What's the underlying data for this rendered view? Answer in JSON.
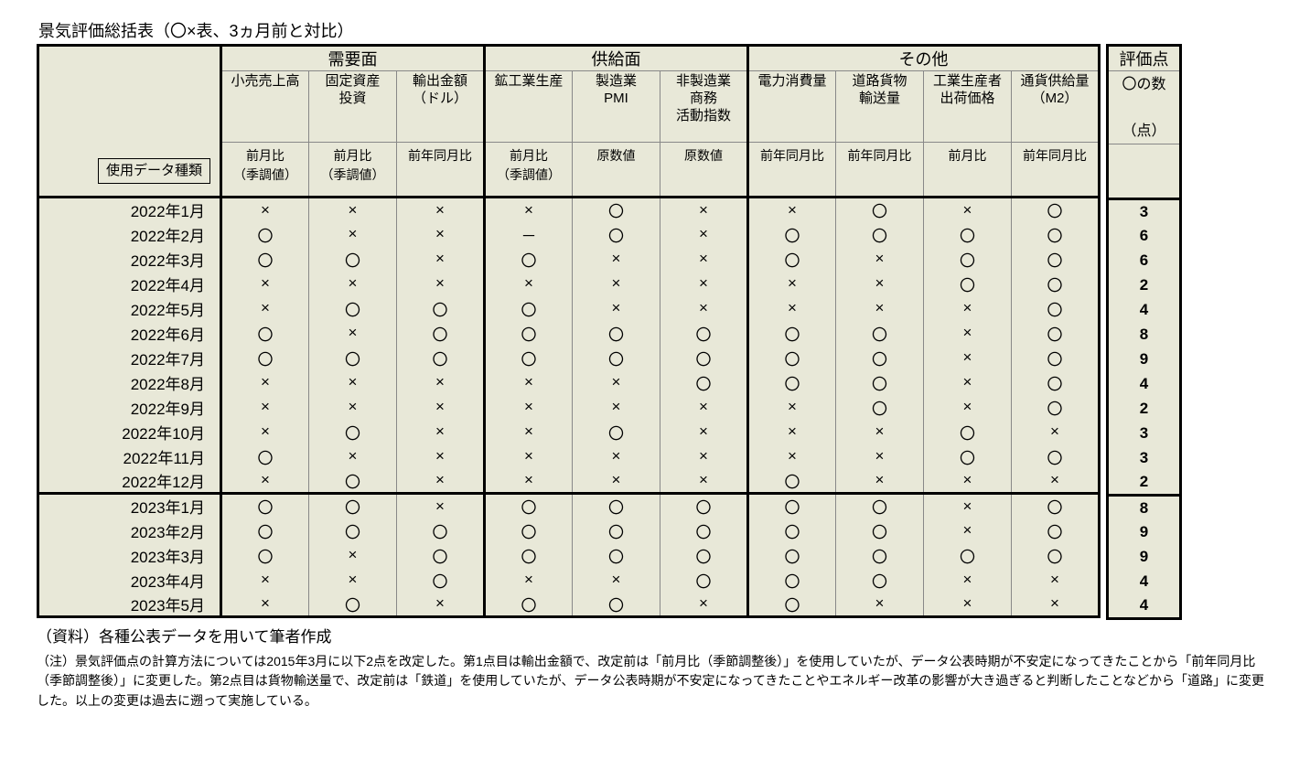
{
  "title": "景気評価総括表（〇×表、3ヵ月前と対比）",
  "main_table": {
    "row_label_header": "使用データ種類",
    "groups": [
      {
        "label": "需要面",
        "span": 3
      },
      {
        "label": "供給面",
        "span": 3
      },
      {
        "label": "その他",
        "span": 4
      }
    ],
    "columns": [
      {
        "label": "小売売上高",
        "datatype": "前月比\n（季調値）",
        "group_end": false
      },
      {
        "label": "固定資産\n投資",
        "datatype": "前月比\n（季調値）",
        "group_end": false
      },
      {
        "label": "輸出金額\n（ドル）",
        "datatype": "前年同月比",
        "group_end": true
      },
      {
        "label": "鉱工業生産",
        "datatype": "前月比\n（季調値）",
        "group_end": false
      },
      {
        "label": "製造業\nPMI",
        "datatype": "原数値",
        "group_end": false
      },
      {
        "label": "非製造業\n商務\n活動指数",
        "datatype": "原数値",
        "group_end": true
      },
      {
        "label": "電力消費量",
        "datatype": "前年同月比",
        "group_end": false
      },
      {
        "label": "道路貨物\n輸送量",
        "datatype": "前年同月比",
        "group_end": false
      },
      {
        "label": "工業生産者\n出荷価格",
        "datatype": "前月比",
        "group_end": false
      },
      {
        "label": "通貨供給量\n（M2）",
        "datatype": "前年同月比",
        "group_end": false
      }
    ],
    "rows": [
      {
        "label": "2022年1月",
        "cells": [
          "×",
          "×",
          "×",
          "×",
          "〇",
          "×",
          "×",
          "〇",
          "×",
          "〇"
        ],
        "score": "3",
        "year_sep": false
      },
      {
        "label": "2022年2月",
        "cells": [
          "〇",
          "×",
          "×",
          "－",
          "〇",
          "×",
          "〇",
          "〇",
          "〇",
          "〇"
        ],
        "score": "6",
        "year_sep": false
      },
      {
        "label": "2022年3月",
        "cells": [
          "〇",
          "〇",
          "×",
          "〇",
          "×",
          "×",
          "〇",
          "×",
          "〇",
          "〇"
        ],
        "score": "6",
        "year_sep": false
      },
      {
        "label": "2022年4月",
        "cells": [
          "×",
          "×",
          "×",
          "×",
          "×",
          "×",
          "×",
          "×",
          "〇",
          "〇"
        ],
        "score": "2",
        "year_sep": false
      },
      {
        "label": "2022年5月",
        "cells": [
          "×",
          "〇",
          "〇",
          "〇",
          "×",
          "×",
          "×",
          "×",
          "×",
          "〇"
        ],
        "score": "4",
        "year_sep": false
      },
      {
        "label": "2022年6月",
        "cells": [
          "〇",
          "×",
          "〇",
          "〇",
          "〇",
          "〇",
          "〇",
          "〇",
          "×",
          "〇"
        ],
        "score": "8",
        "year_sep": false
      },
      {
        "label": "2022年7月",
        "cells": [
          "〇",
          "〇",
          "〇",
          "〇",
          "〇",
          "〇",
          "〇",
          "〇",
          "×",
          "〇"
        ],
        "score": "9",
        "year_sep": false
      },
      {
        "label": "2022年8月",
        "cells": [
          "×",
          "×",
          "×",
          "×",
          "×",
          "〇",
          "〇",
          "〇",
          "×",
          "〇"
        ],
        "score": "4",
        "year_sep": false
      },
      {
        "label": "2022年9月",
        "cells": [
          "×",
          "×",
          "×",
          "×",
          "×",
          "×",
          "×",
          "〇",
          "×",
          "〇"
        ],
        "score": "2",
        "year_sep": false
      },
      {
        "label": "2022年10月",
        "cells": [
          "×",
          "〇",
          "×",
          "×",
          "〇",
          "×",
          "×",
          "×",
          "〇",
          "×"
        ],
        "score": "3",
        "year_sep": false
      },
      {
        "label": "2022年11月",
        "cells": [
          "〇",
          "×",
          "×",
          "×",
          "×",
          "×",
          "×",
          "×",
          "〇",
          "〇"
        ],
        "score": "3",
        "year_sep": false
      },
      {
        "label": "2022年12月",
        "cells": [
          "×",
          "〇",
          "×",
          "×",
          "×",
          "×",
          "〇",
          "×",
          "×",
          "×"
        ],
        "score": "2",
        "year_sep": true
      },
      {
        "label": "2023年1月",
        "cells": [
          "〇",
          "〇",
          "×",
          "〇",
          "〇",
          "〇",
          "〇",
          "〇",
          "×",
          "〇"
        ],
        "score": "8",
        "year_sep": false
      },
      {
        "label": "2023年2月",
        "cells": [
          "〇",
          "〇",
          "〇",
          "〇",
          "〇",
          "〇",
          "〇",
          "〇",
          "×",
          "〇"
        ],
        "score": "9",
        "year_sep": false
      },
      {
        "label": "2023年3月",
        "cells": [
          "〇",
          "×",
          "〇",
          "〇",
          "〇",
          "〇",
          "〇",
          "〇",
          "〇",
          "〇"
        ],
        "score": "9",
        "year_sep": false
      },
      {
        "label": "2023年4月",
        "cells": [
          "×",
          "×",
          "〇",
          "×",
          "×",
          "〇",
          "〇",
          "〇",
          "×",
          "×"
        ],
        "score": "4",
        "year_sep": false
      },
      {
        "label": "2023年5月",
        "cells": [
          "×",
          "〇",
          "×",
          "〇",
          "〇",
          "×",
          "〇",
          "×",
          "×",
          "×"
        ],
        "score": "4",
        "year_sep": false
      }
    ]
  },
  "score_table": {
    "header1": "評価点",
    "header2": "〇の数\n\n（点）"
  },
  "source": "（資料）各種公表データを用いて筆者作成",
  "note": "（注）景気評価点の計算方法については2015年3月に以下2点を改定した。第1点目は輸出金額で、改定前は「前月比（季節調整後）」を使用していたが、データ公表時期が不安定になってきたことから「前年同月比（季節調整後）」に変更した。第2点目は貨物輸送量で、改定前は「鉄道」を使用していたが、データ公表時期が不安定になってきたことやエネルギー改革の影響が大き過ぎると判断したことなどから「道路」に変更した。以上の変更は過去に遡って実施している。",
  "styling": {
    "background_color": "#e8e8d8",
    "border_heavy": "#000000",
    "border_light": "#888888",
    "page_bg": "#ffffff",
    "title_fontsize": 18,
    "header_fontsize": 16,
    "body_fontsize": 17,
    "note_fontsize": 14,
    "mark_circle": "〇",
    "mark_cross": "×",
    "mark_dash": "－"
  }
}
